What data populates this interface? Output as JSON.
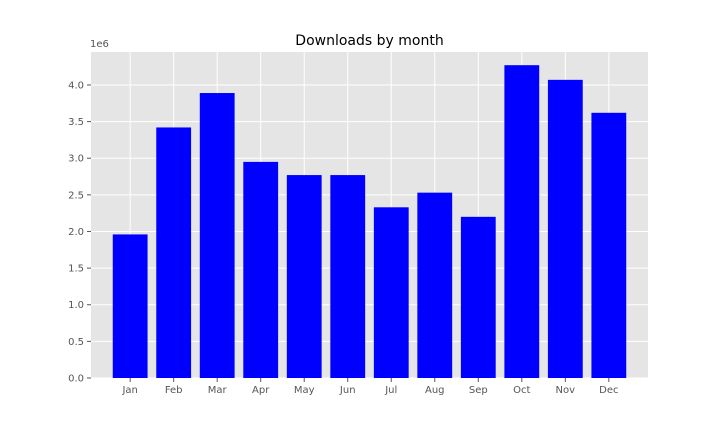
{
  "chart_data": {
    "type": "bar",
    "title": "Downloads by month",
    "xlabel": "",
    "ylabel": "",
    "y_offset_label": "1e6",
    "categories": [
      "Jan",
      "Feb",
      "Mar",
      "Apr",
      "May",
      "Jun",
      "Jul",
      "Aug",
      "Sep",
      "Oct",
      "Nov",
      "Dec"
    ],
    "values": [
      1960000,
      3420000,
      3890000,
      2950000,
      2770000,
      2770000,
      2330000,
      2530000,
      2200000,
      4270000,
      4070000,
      3620000
    ],
    "ylim": [
      0,
      4450000
    ],
    "yticks": [
      0,
      500000,
      1000000,
      1500000,
      2000000,
      2500000,
      3000000,
      3500000,
      4000000
    ],
    "ytick_labels": [
      "0.0",
      "0.5",
      "1.0",
      "1.5",
      "2.0",
      "2.5",
      "3.0",
      "3.5",
      "4.0"
    ],
    "grid": true,
    "style": "ggplot",
    "colors": {
      "bar": "#0000ff",
      "plot_background": "#e5e5e5",
      "grid": "#ffffff",
      "tick_text": "#555555",
      "title_text": "#000000"
    }
  }
}
